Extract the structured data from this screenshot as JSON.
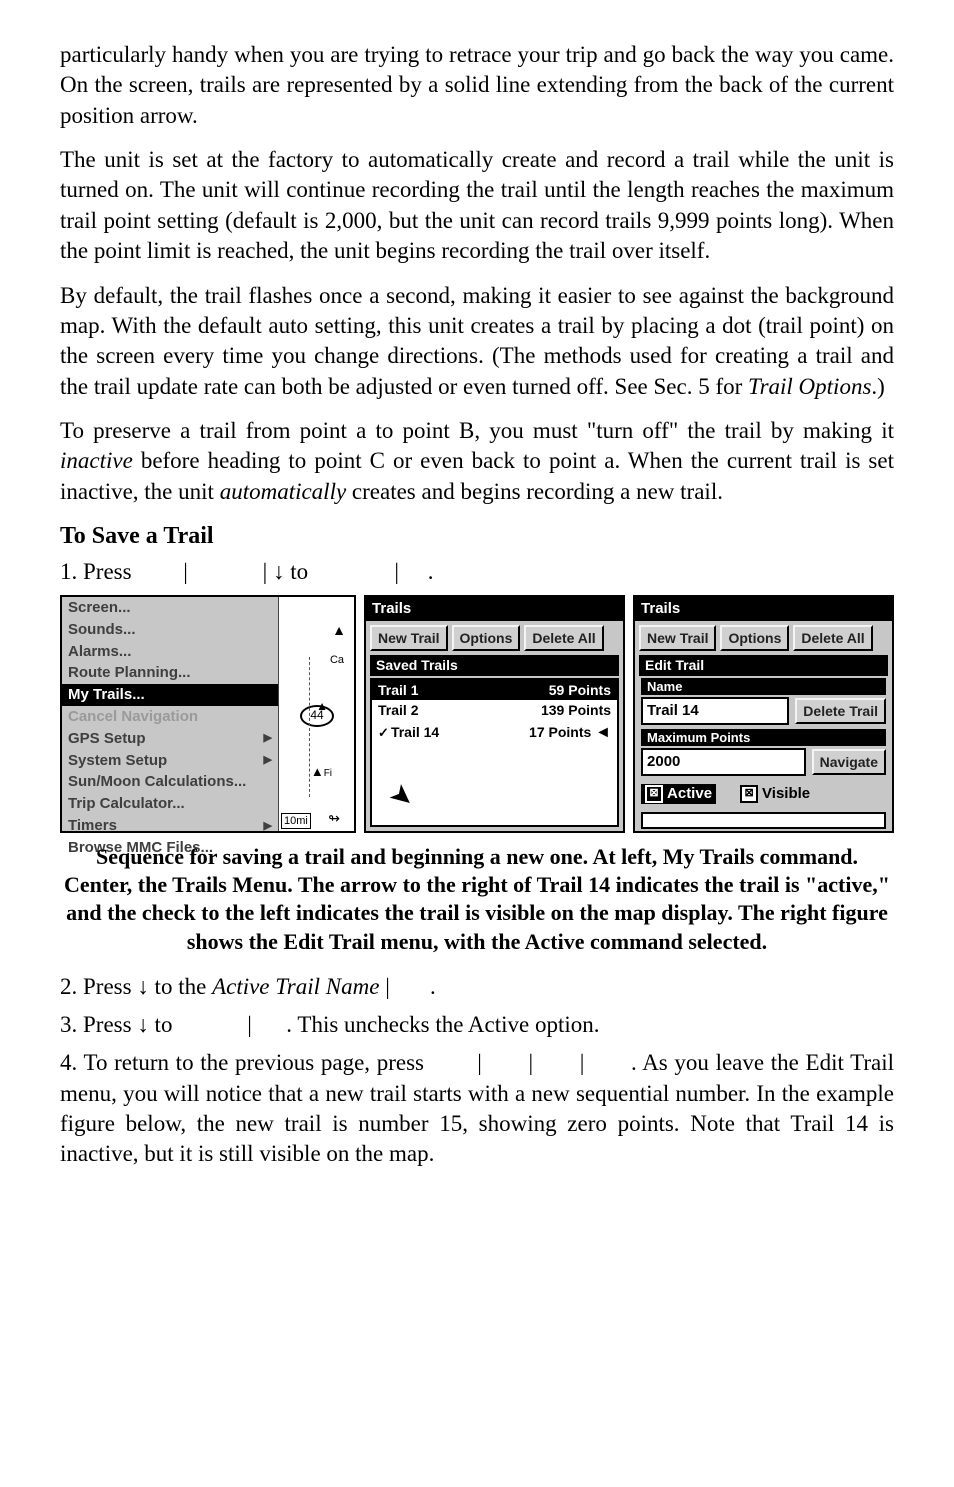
{
  "para1": "particularly handy when you are trying to retrace your trip and go back the way you came. On the screen, trails are represented by a solid line extending from the back of the current position arrow.",
  "para2": "The unit is set at the factory to automatically create and record a trail while the unit is turned on. The unit will continue recording the trail until the length reaches the maximum trail point setting (default is 2,000, but the unit can record trails 9,999 points long). When the point limit is reached, the unit begins recording the trail over itself.",
  "para3a": "By default, the trail flashes once a second, making it easier to see against the background map. With the default auto setting, this unit creates a trail by placing a dot (trail point) on the screen every time you change directions. (The methods used for creating a trail and the trail update rate can both be adjusted or even turned off. See Sec. 5 for ",
  "para3b": "Trail Options",
  "para3c": ".)",
  "para4a": "To preserve a trail from point a to point B, you must \"turn off\" the trail by making it ",
  "para4b": "inactive",
  "para4c": " before heading to point C or even back to point a. When the current trail is set inactive, the unit ",
  "para4d": "automatically",
  "para4e": " creates and begins recording a new trail.",
  "h_save": "To Save a Trail",
  "step1": "1. Press         |             | ↓ to               |     .",
  "menu": {
    "items": [
      {
        "label": "Screen...",
        "hl": false,
        "dis": false,
        "sub": false
      },
      {
        "label": "Sounds...",
        "hl": false,
        "dis": false,
        "sub": false
      },
      {
        "label": "Alarms...",
        "hl": false,
        "dis": false,
        "sub": false
      },
      {
        "label": "Route Planning...",
        "hl": false,
        "dis": false,
        "sub": false
      },
      {
        "label": "My Trails...",
        "hl": true,
        "dis": false,
        "sub": false
      },
      {
        "label": "Cancel Navigation",
        "hl": false,
        "dis": true,
        "sub": false
      },
      {
        "label": "GPS Setup",
        "hl": false,
        "dis": false,
        "sub": true
      },
      {
        "label": "System Setup",
        "hl": false,
        "dis": false,
        "sub": true
      },
      {
        "label": "Sun/Moon Calculations...",
        "hl": false,
        "dis": false,
        "sub": false
      },
      {
        "label": "Trip Calculator...",
        "hl": false,
        "dis": false,
        "sub": false
      },
      {
        "label": "Timers",
        "hl": false,
        "dis": false,
        "sub": true
      },
      {
        "label": "Browse MMC Files...",
        "hl": false,
        "dis": false,
        "sub": false
      }
    ],
    "scale": "10mi",
    "badge": "44"
  },
  "trails_panel": {
    "title": "Trails",
    "btn_new": "New Trail",
    "btn_opt": "Options",
    "btn_del": "Delete All",
    "saved_label": "Saved Trails",
    "rows": [
      {
        "name": "Trail 1",
        "pts": "59 Points",
        "sel": true,
        "chk": false,
        "arrow": false
      },
      {
        "name": "Trail 2",
        "pts": "139 Points",
        "sel": false,
        "chk": false,
        "arrow": false
      },
      {
        "name": "Trail 14",
        "pts": "17 Points",
        "sel": false,
        "chk": true,
        "arrow": true
      }
    ]
  },
  "edit_panel": {
    "title": "Trails",
    "btn_new": "New Trail",
    "btn_opt": "Options",
    "btn_del": "Delete All",
    "edit_label": "Edit Trail",
    "name_label": "Name",
    "name_value": "Trail 14",
    "btn_deltrail": "Delete Trail",
    "max_label": "Maximum Points",
    "max_value": "2000",
    "btn_nav": "Navigate",
    "active": "Active",
    "visible": "Visible"
  },
  "caption": "Sequence for saving a trail and beginning a new one. At left, My Trails command. Center, the Trails Menu. The arrow to the right of Trail 14 indicates the trail is \"active,\" and the check to the left indicates the trail is visible on the map display. The right figure shows the Edit Trail menu, with the Active command selected.",
  "step2a": "2. Press ↓ to the ",
  "step2b": "Active Trail Name",
  "step2c": " |       .",
  "step3": "3. Press ↓ to             |      . This unchecks the Active option.",
  "step4": "4. To return to the previous page, press        |       |       |       . As you leave the Edit Trail menu, you will notice that a new trail starts with a new sequential number. In the example figure below, the new trail is number 15, showing zero points. Note that Trail 14 is inactive, but it is still visible on the map."
}
